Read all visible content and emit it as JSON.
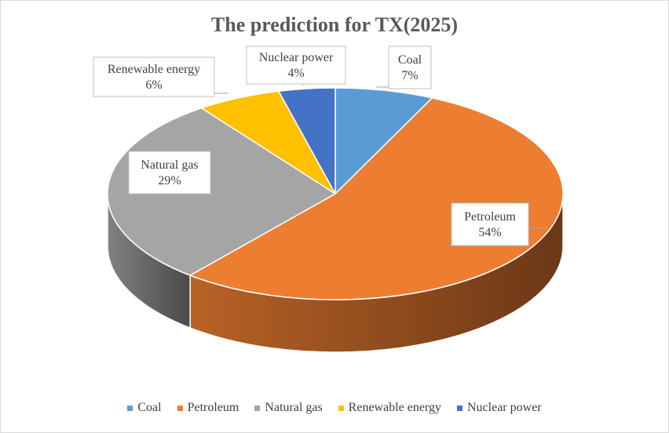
{
  "chart_data": {
    "type": "pie",
    "title": "The prediction for TX(2025)",
    "categories": [
      "Coal",
      "Petroleum",
      "Natural gas",
      "Renewable energy",
      "Nuclear power"
    ],
    "values": [
      7,
      54,
      29,
      6,
      4
    ],
    "value_labels": [
      "7%",
      "54%",
      "29%",
      "6%",
      "4%"
    ],
    "colors": [
      "#5b9bd5",
      "#ed7d31",
      "#a5a5a5",
      "#ffc000",
      "#4472c4"
    ],
    "legend_position": "bottom",
    "style": "3d"
  }
}
